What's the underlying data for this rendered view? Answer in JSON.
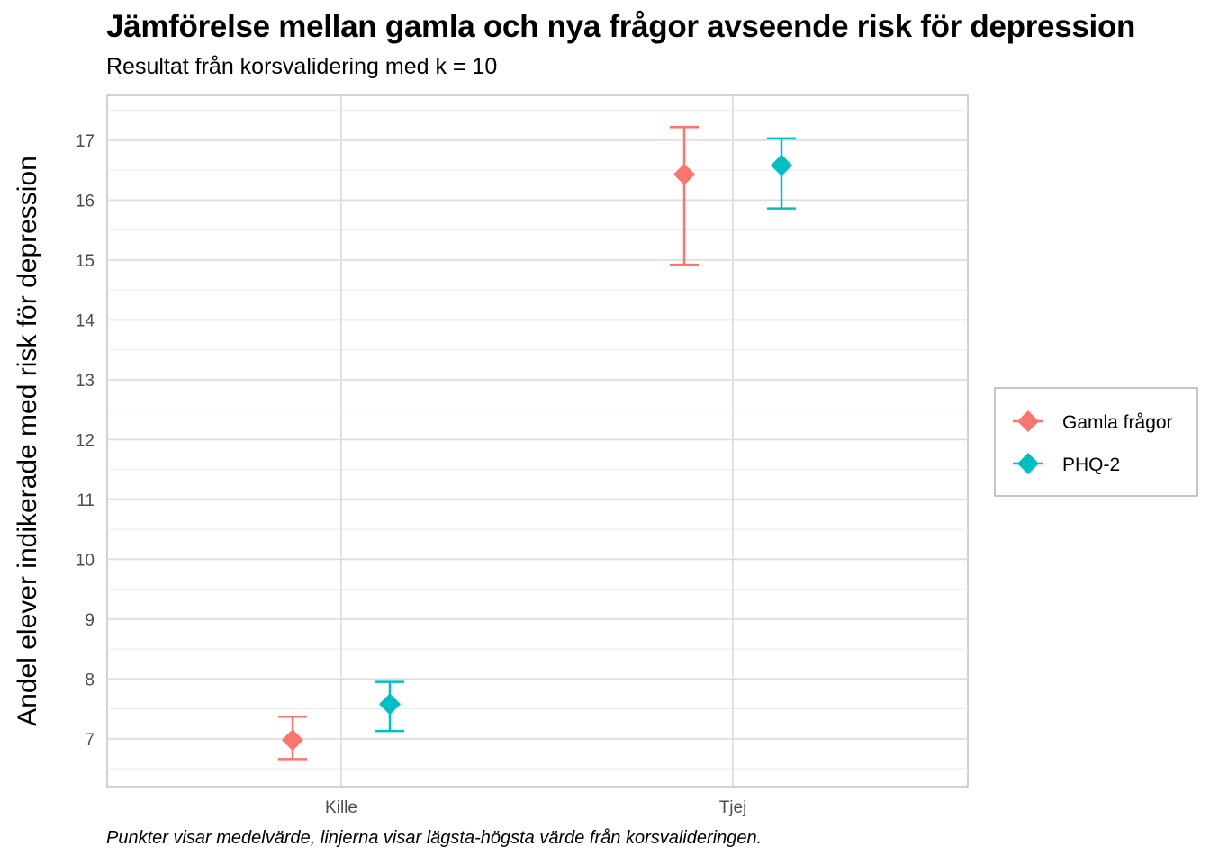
{
  "title": "Jämförelse mellan gamla och nya frågor avseende risk för depression",
  "subtitle": "Resultat från korsvalidering med k = 10",
  "caption": "Punkter visar medelvärde, linjerna visar lägsta-högsta värde från korsvalideringen.",
  "chart_data": {
    "type": "scatter",
    "title": "Jämförelse mellan gamla och nya frågor avseende risk för depression",
    "subtitle": "Resultat från korsvalidering med k = 10",
    "xlabel": "",
    "ylabel": "Andel elever indikerade med risk för depression",
    "categories": [
      "Kille",
      "Tjej"
    ],
    "y_ticks": [
      7,
      8,
      9,
      10,
      11,
      12,
      13,
      14,
      15,
      16,
      17
    ],
    "ylim": [
      6.2,
      17.75
    ],
    "grid": true,
    "legend_position": "right",
    "series": [
      {
        "name": "Gamla frågor",
        "color": "#F8766D",
        "values": [
          {
            "category": "Kille",
            "mean": 6.98,
            "min": 6.66,
            "max": 7.37
          },
          {
            "category": "Tjej",
            "mean": 16.43,
            "min": 14.92,
            "max": 17.22
          }
        ]
      },
      {
        "name": "PHQ-2",
        "color": "#00BFC4",
        "values": [
          {
            "category": "Kille",
            "mean": 7.58,
            "min": 7.13,
            "max": 7.95
          },
          {
            "category": "Tjej",
            "mean": 16.58,
            "min": 15.86,
            "max": 17.03
          }
        ]
      }
    ]
  }
}
